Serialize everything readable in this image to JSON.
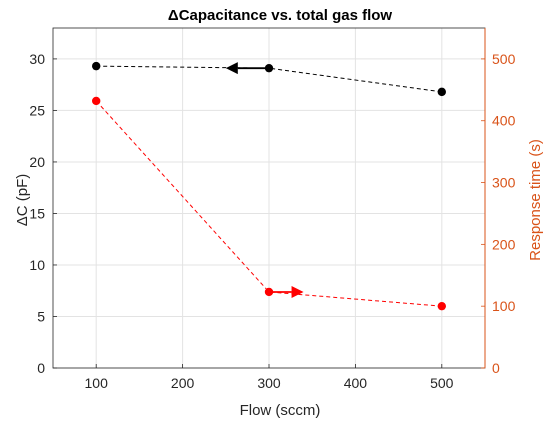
{
  "chart_data": {
    "type": "line",
    "title": "ΔCapacitance vs. total gas flow",
    "xlabel": "Flow (sccm)",
    "ylabel_left": "ΔC (pF)",
    "ylabel_right": "Response time (s)",
    "xlim": [
      50,
      550
    ],
    "ylim_left": [
      0,
      33
    ],
    "ylim_right": [
      0,
      550
    ],
    "xticks": [
      "100",
      "200",
      "300",
      "400",
      "500"
    ],
    "yticks_left": [
      "0",
      "5",
      "10",
      "15",
      "20",
      "25",
      "30"
    ],
    "yticks_right": [
      "0",
      "100",
      "200",
      "300",
      "400",
      "500"
    ],
    "grid": true,
    "colors": {
      "left_axis": "#262626",
      "right_axis": "#d95319",
      "capacitance": "#000000",
      "response": "#ff0000"
    },
    "series": [
      {
        "axis": "left",
        "color": "#000000",
        "x": [
          100,
          300,
          500
        ],
        "y": [
          29.3,
          29.1,
          26.8
        ]
      },
      {
        "axis": "right",
        "color": "#ff0000",
        "x": [
          100,
          300,
          500
        ],
        "y": [
          432,
          123,
          100
        ]
      }
    ],
    "annotations": [
      {
        "type": "arrow",
        "direction": "left",
        "color": "#000000",
        "axis": "left",
        "from": [
          300,
          29.1
        ],
        "to": [
          250,
          29.1
        ]
      },
      {
        "type": "arrow",
        "direction": "right",
        "color": "#ff0000",
        "axis": "right",
        "from": [
          300,
          123
        ],
        "to": [
          340,
          123
        ]
      }
    ]
  }
}
